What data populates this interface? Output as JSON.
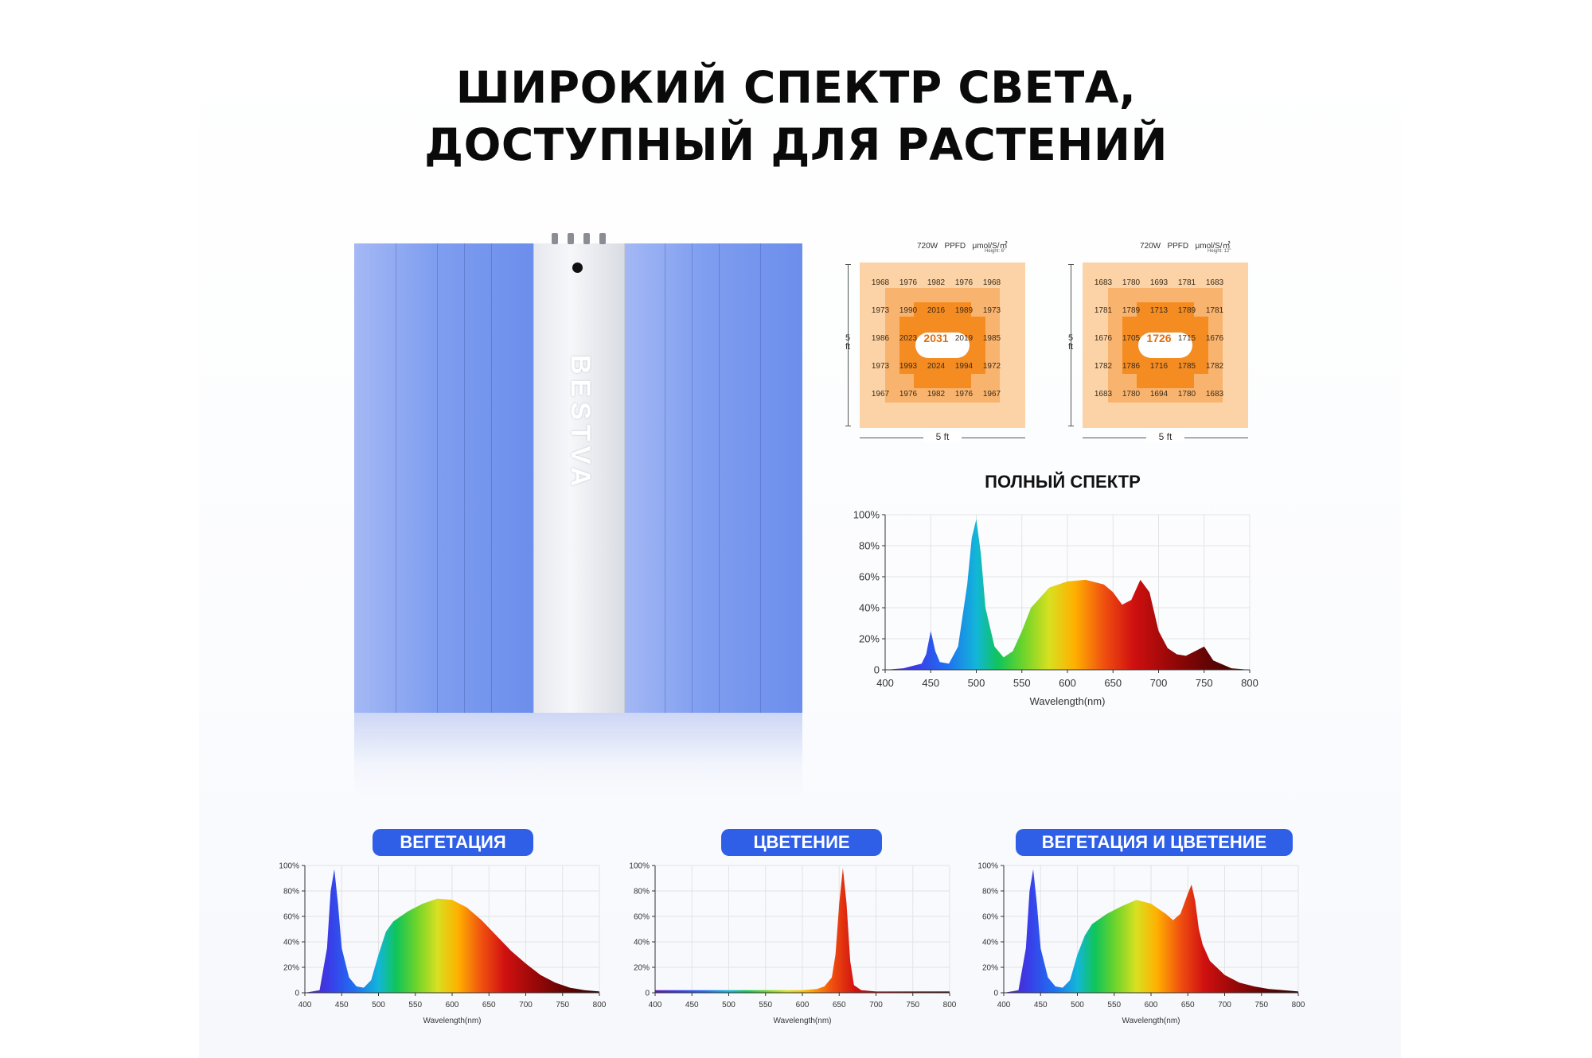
{
  "title": {
    "line1": "ШИРОКИЙ СПЕКТР СВЕТА,",
    "line2": "ДОСТУПНЫЙ ДЛЯ РАСТЕНИЙ"
  },
  "lamp": {
    "brand": "BESTVA"
  },
  "ppfd_maps": [
    {
      "power": "720W",
      "metric": "PPFD",
      "unit": "μmol/S/㎡",
      "height": "Height: 6\"",
      "side_label": "5 ft",
      "bottom_label": "5 ft",
      "grid": [
        [
          "1968",
          "1976",
          "1982",
          "1976",
          "1968"
        ],
        [
          "1973",
          "1990",
          "2016",
          "1989",
          "1973"
        ],
        [
          "1986",
          "2023",
          "2031",
          "2019",
          "1985"
        ],
        [
          "1973",
          "1993",
          "2024",
          "1994",
          "1972"
        ],
        [
          "1967",
          "1976",
          "1982",
          "1976",
          "1967"
        ]
      ]
    },
    {
      "power": "720W",
      "metric": "PPFD",
      "unit": "μmol/S/㎡",
      "height": "Height: 12\"",
      "side_label": "5 ft",
      "bottom_label": "5 ft",
      "grid": [
        [
          "1683",
          "1780",
          "1693",
          "1781",
          "1683"
        ],
        [
          "1781",
          "1789",
          "1713",
          "1789",
          "1781"
        ],
        [
          "1676",
          "1705",
          "1726",
          "1715",
          "1676"
        ],
        [
          "1782",
          "1786",
          "1716",
          "1785",
          "1782"
        ],
        [
          "1683",
          "1780",
          "1694",
          "1780",
          "1683"
        ]
      ]
    }
  ],
  "full_spectrum_title": "ПОЛНЫЙ СПЕКТР",
  "badges": {
    "veg": "ВЕГЕТАЦИЯ",
    "bloom": "ЦВЕТЕНИЕ",
    "both": "ВЕГЕТАЦИЯ И ЦВЕТЕНИЕ"
  },
  "chart_data": [
    {
      "id": "full",
      "type": "area",
      "title": "ПОЛНЫЙ СПЕКТР",
      "xlabel": "Wavelength(nm)",
      "ylabel": "",
      "xlim": [
        400,
        800
      ],
      "ylim": [
        0,
        100
      ],
      "xticks": [
        "400",
        "450",
        "500",
        "550",
        "600",
        "650",
        "700",
        "750",
        "800"
      ],
      "yticks": [
        "0",
        "20%",
        "40%",
        "60%",
        "80%",
        "100%"
      ],
      "grid": true,
      "fill": "wavelength-rainbow",
      "x": [
        400,
        420,
        440,
        445,
        450,
        455,
        460,
        470,
        480,
        490,
        495,
        500,
        505,
        510,
        520,
        530,
        540,
        550,
        560,
        580,
        600,
        620,
        640,
        650,
        660,
        670,
        680,
        690,
        700,
        710,
        720,
        730,
        740,
        750,
        760,
        780,
        800
      ],
      "y": [
        0,
        1,
        4,
        10,
        25,
        12,
        5,
        4,
        15,
        55,
        85,
        97,
        75,
        40,
        15,
        8,
        12,
        25,
        40,
        53,
        57,
        58,
        55,
        50,
        42,
        45,
        58,
        50,
        25,
        14,
        10,
        9,
        12,
        15,
        6,
        1,
        0
      ]
    },
    {
      "id": "veg",
      "type": "area",
      "title": "ВЕГЕТАЦИЯ",
      "xlabel": "Wavelength(nm)",
      "xlim": [
        400,
        800
      ],
      "ylim": [
        0,
        100
      ],
      "xticks": [
        "400",
        "450",
        "500",
        "550",
        "600",
        "650",
        "700",
        "750",
        "800"
      ],
      "yticks": [
        "0",
        "20%",
        "40%",
        "60%",
        "80%",
        "100%"
      ],
      "grid": true,
      "fill": "wavelength-rainbow",
      "x": [
        400,
        420,
        430,
        435,
        440,
        445,
        450,
        460,
        470,
        480,
        490,
        500,
        510,
        520,
        540,
        560,
        580,
        600,
        620,
        640,
        660,
        680,
        700,
        720,
        740,
        760,
        780,
        800
      ],
      "y": [
        0,
        2,
        35,
        80,
        97,
        70,
        35,
        12,
        5,
        4,
        10,
        30,
        48,
        56,
        64,
        70,
        74,
        73,
        67,
        57,
        45,
        33,
        23,
        14,
        8,
        4,
        2,
        1
      ]
    },
    {
      "id": "bloom",
      "type": "area",
      "title": "ЦВЕТЕНИЕ",
      "xlabel": "Wavelength(nm)",
      "xlim": [
        400,
        800
      ],
      "ylim": [
        0,
        100
      ],
      "xticks": [
        "400",
        "450",
        "500",
        "550",
        "600",
        "650",
        "700",
        "750",
        "800"
      ],
      "yticks": [
        "0",
        "20%",
        "40%",
        "60%",
        "80%",
        "100%"
      ],
      "grid": true,
      "fill": "wavelength-rainbow",
      "x": [
        400,
        500,
        600,
        620,
        630,
        640,
        645,
        650,
        655,
        660,
        665,
        670,
        680,
        700,
        800
      ],
      "y": [
        2,
        2,
        2,
        3,
        5,
        12,
        30,
        70,
        98,
        70,
        25,
        6,
        2,
        1,
        1
      ]
    },
    {
      "id": "both",
      "type": "area",
      "title": "ВЕГЕТАЦИЯ И ЦВЕТЕНИЕ",
      "xlabel": "Wavelength(nm)",
      "xlim": [
        400,
        800
      ],
      "ylim": [
        0,
        100
      ],
      "xticks": [
        "400",
        "450",
        "500",
        "550",
        "600",
        "650",
        "700",
        "750",
        "800"
      ],
      "yticks": [
        "0",
        "20%",
        "40%",
        "60%",
        "80%",
        "100%"
      ],
      "grid": true,
      "fill": "wavelength-rainbow",
      "x": [
        400,
        420,
        430,
        435,
        440,
        445,
        450,
        460,
        470,
        480,
        490,
        500,
        510,
        520,
        540,
        560,
        580,
        600,
        620,
        630,
        640,
        650,
        655,
        660,
        665,
        670,
        680,
        700,
        720,
        740,
        760,
        780,
        800
      ],
      "y": [
        0,
        2,
        35,
        80,
        97,
        70,
        35,
        12,
        5,
        4,
        10,
        30,
        45,
        54,
        62,
        68,
        73,
        70,
        62,
        57,
        62,
        78,
        85,
        72,
        50,
        38,
        25,
        14,
        8,
        5,
        3,
        2,
        1
      ]
    }
  ]
}
